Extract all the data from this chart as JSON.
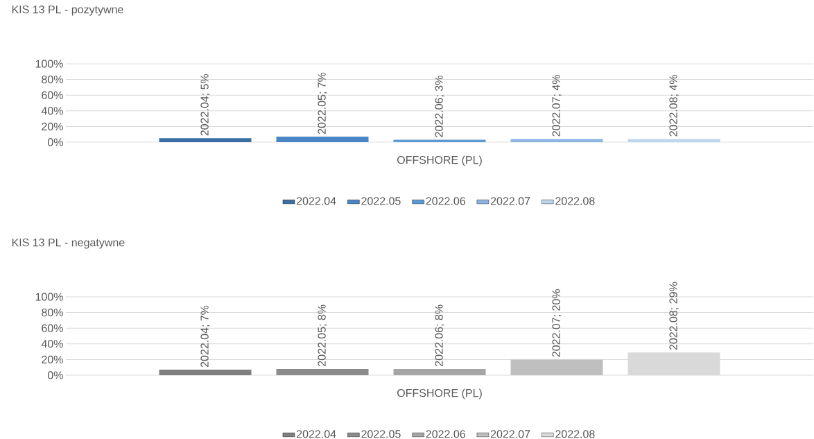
{
  "chart_data": [
    {
      "type": "bar",
      "title": "KIS 13 PL - pozytywne",
      "categories": [
        "OFFSHORE (PL)"
      ],
      "series": [
        {
          "name": "2022.04",
          "color": "#3b6ea5",
          "values": [
            5
          ],
          "value_labels": [
            "2022.04; 5%"
          ]
        },
        {
          "name": "2022.05",
          "color": "#4a86c5",
          "values": [
            7
          ],
          "value_labels": [
            "2022.05; 7%"
          ]
        },
        {
          "name": "2022.06",
          "color": "#5b9bd5",
          "values": [
            3
          ],
          "value_labels": [
            "2022.06; 3%"
          ]
        },
        {
          "name": "2022.07",
          "color": "#8eb4e3",
          "values": [
            4
          ],
          "value_labels": [
            "2022.07; 4%"
          ]
        },
        {
          "name": "2022.08",
          "color": "#bdd7ee",
          "values": [
            4
          ],
          "value_labels": [
            "2022.08; 4%"
          ]
        }
      ],
      "ylim": [
        0,
        100
      ],
      "yticks": [
        {
          "value": 0,
          "label": "0%"
        },
        {
          "value": 20,
          "label": "20%"
        },
        {
          "value": 40,
          "label": "40%"
        },
        {
          "value": 60,
          "label": "60%"
        },
        {
          "value": 80,
          "label": "80%"
        },
        {
          "value": 100,
          "label": "100%"
        }
      ],
      "grid": "y",
      "legend": "bottom"
    },
    {
      "type": "bar",
      "title": "KIS 13 PL - negatywne",
      "categories": [
        "OFFSHORE (PL)"
      ],
      "series": [
        {
          "name": "2022.04",
          "color": "#7f7f7f",
          "values": [
            7
          ],
          "value_labels": [
            "2022.04; 7%"
          ]
        },
        {
          "name": "2022.05",
          "color": "#8c8c8c",
          "values": [
            8
          ],
          "value_labels": [
            "2022.05; 8%"
          ]
        },
        {
          "name": "2022.06",
          "color": "#a5a5a5",
          "values": [
            8
          ],
          "value_labels": [
            "2022.06; 8%"
          ]
        },
        {
          "name": "2022.07",
          "color": "#bfbfbf",
          "values": [
            20
          ],
          "value_labels": [
            "2022.07; 20%"
          ]
        },
        {
          "name": "2022.08",
          "color": "#d9d9d9",
          "values": [
            29
          ],
          "value_labels": [
            "2022.08; 29%"
          ]
        }
      ],
      "ylim": [
        0,
        100
      ],
      "yticks": [
        {
          "value": 0,
          "label": "0%"
        },
        {
          "value": 20,
          "label": "20%"
        },
        {
          "value": 40,
          "label": "40%"
        },
        {
          "value": 60,
          "label": "60%"
        },
        {
          "value": 80,
          "label": "80%"
        },
        {
          "value": 100,
          "label": "100%"
        }
      ],
      "grid": "y",
      "legend": "bottom"
    }
  ]
}
